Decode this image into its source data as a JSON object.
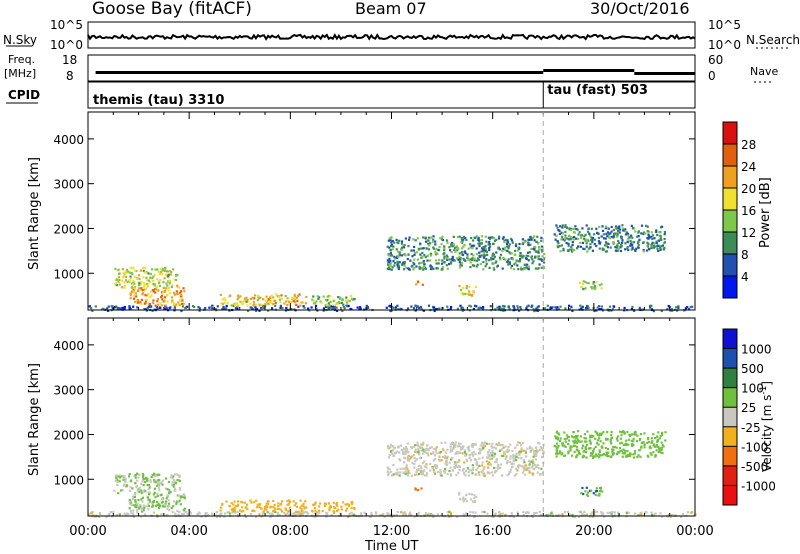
{
  "header": {
    "station": "Goose Bay (fitACF)",
    "beam": "Beam 07",
    "date": "30/Oct/2016"
  },
  "top_panels": {
    "nsky_label": "N.Sky",
    "nsky_ticks": [
      "10^5",
      "10^0"
    ],
    "nsearch_label": "N.Search",
    "nsearch_ticks": [
      "10^5",
      "10^0"
    ],
    "freq_label_1": "Freq.",
    "freq_label_2": "[MHz]",
    "freq_ticks": [
      "18",
      "8"
    ],
    "nave_label": "Nave",
    "nave_ticks": [
      "60",
      "0"
    ],
    "cpid_label": "CPID",
    "cpid_segments": [
      {
        "start_hour": 0,
        "text": "themis (tau) 3310"
      },
      {
        "start_hour": 18,
        "text": "tau (fast) 503"
      }
    ]
  },
  "time_axis": {
    "label": "Time UT",
    "ticks": [
      "00:00",
      "04:00",
      "08:00",
      "12:00",
      "16:00",
      "20:00",
      "00:00"
    ],
    "range_hours": [
      0,
      24
    ],
    "mode_change_hour": 18
  },
  "range_axis": {
    "label": "Slant Range [km]",
    "ticks": [
      "1000",
      "2000",
      "3000",
      "4000"
    ],
    "range_km": [
      180,
      4600
    ]
  },
  "power_colorbar": {
    "label": "Power [dB]",
    "ticks": [
      "4",
      "8",
      "12",
      "16",
      "20",
      "24",
      "28"
    ],
    "colors": [
      "#0018f0",
      "#2050b0",
      "#3c8c5a",
      "#7dc84a",
      "#f0e030",
      "#f0a020",
      "#e06010",
      "#d81010"
    ]
  },
  "velocity_colorbar": {
    "label": "Velocity [m s",
    "label_exp": "-1",
    "label_end": "]",
    "ticks": [
      "1000",
      "500",
      "100",
      "25",
      "-25",
      "-100",
      "-500",
      "-1000"
    ],
    "colors": [
      "#1010d0",
      "#1e50b0",
      "#308040",
      "#70c040",
      "#c8c8c0",
      "#f0b020",
      "#f07010",
      "#e02010",
      "#e81010"
    ]
  },
  "chart_data": {
    "type": "heatmap",
    "title": "Goose Bay (fitACF)",
    "xlabel": "Time UT",
    "ylabel": "Slant Range [km]",
    "xlim_hours": [
      0,
      24
    ],
    "ylim_km": [
      180,
      4600
    ],
    "power_scatter_regions": [
      {
        "start_hour": 0.0,
        "end_hour": 24.0,
        "min_km": 180,
        "max_km": 300,
        "power_db": 6,
        "velocity": 0
      },
      {
        "start_hour": 1.0,
        "end_hour": 3.6,
        "min_km": 700,
        "max_km": 1150,
        "power_db": 16,
        "velocity": 25
      },
      {
        "start_hour": 1.6,
        "end_hour": 3.8,
        "min_km": 300,
        "max_km": 700,
        "power_db": 22,
        "velocity": 30
      },
      {
        "start_hour": 5.2,
        "end_hour": 8.6,
        "min_km": 300,
        "max_km": 550,
        "power_db": 20,
        "velocity": -60
      },
      {
        "start_hour": 8.8,
        "end_hour": 10.5,
        "min_km": 300,
        "max_km": 520,
        "power_db": 14,
        "velocity": -50
      },
      {
        "start_hour": 11.8,
        "end_hour": 18.0,
        "min_km": 1100,
        "max_km": 1850,
        "power_db": 10,
        "velocity": 0
      },
      {
        "start_hour": 14.6,
        "end_hour": 15.3,
        "min_km": 500,
        "max_km": 750,
        "power_db": 18,
        "velocity": 0
      },
      {
        "start_hour": 18.4,
        "end_hour": 22.8,
        "min_km": 1500,
        "max_km": 2100,
        "power_db": 9,
        "velocity": 60
      },
      {
        "start_hour": 19.4,
        "end_hour": 20.3,
        "min_km": 650,
        "max_km": 850,
        "power_db": 15,
        "velocity": 80
      },
      {
        "start_hour": 12.9,
        "end_hour": 13.2,
        "min_km": 750,
        "max_km": 850,
        "power_db": 22,
        "velocity": -300
      }
    ]
  }
}
